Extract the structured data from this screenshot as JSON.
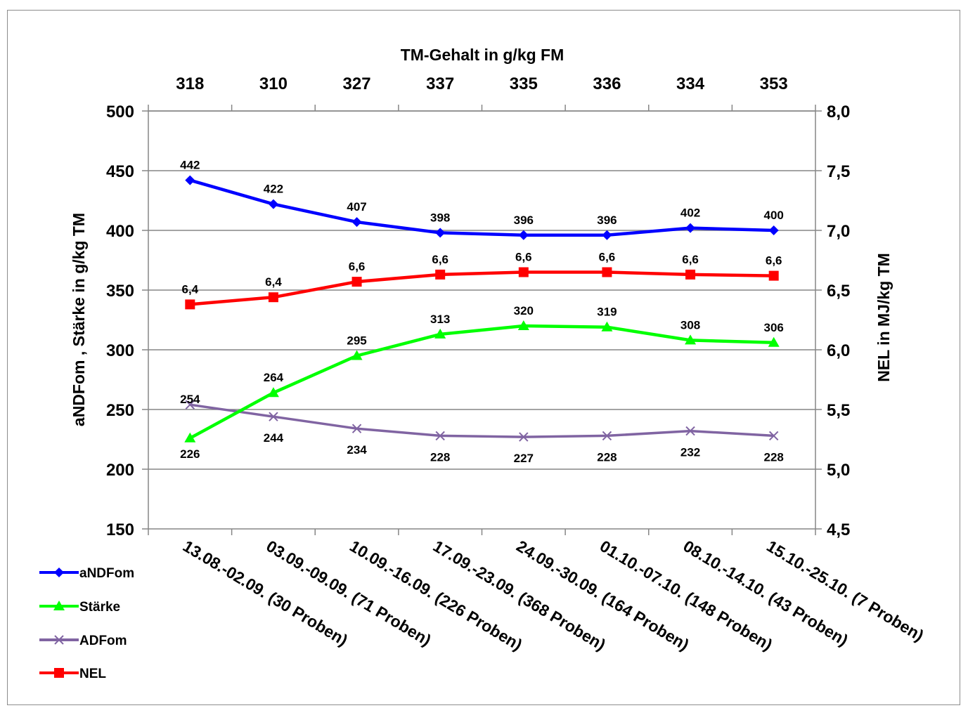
{
  "chart_data": {
    "type": "line",
    "title": "",
    "top_axis_label": "TM-Gehalt in g/kg FM",
    "top_ticks": [
      "318",
      "310",
      "327",
      "337",
      "335",
      "336",
      "334",
      "353"
    ],
    "ylabel": "aNDFom , Stärke in g/kg TM",
    "ylabel_right": "NEL in MJ/kg TM",
    "ylim": [
      150,
      500
    ],
    "ylim_right": [
      4.5,
      8.0
    ],
    "y_ticks": [
      "150",
      "200",
      "250",
      "300",
      "350",
      "400",
      "450",
      "500"
    ],
    "y_ticks_right": [
      "4,5",
      "5,0",
      "5,5",
      "6,0",
      "6,5",
      "7,0",
      "7,5",
      "8,0"
    ],
    "categories": [
      "13.08.-02.09. (30 Proben)",
      "03.09.-09.09. (71 Proben)",
      "10.09.-16.09. (226 Proben)",
      "17.09.-23.09. (368 Proben)",
      "24.09.-30.09. (164 Proben)",
      "01.10.-07.10. (148 Proben)",
      "08.10.-14.10. (43 Proben)",
      "15.10.-25.10. (7 Proben)"
    ],
    "legend_position": "bottom-left",
    "series": [
      {
        "name": "aNDFom",
        "axis": "left",
        "color": "#0000ff",
        "marker": "diamond",
        "values": [
          442,
          422,
          407,
          398,
          396,
          396,
          402,
          400
        ],
        "labels": [
          "442",
          "422",
          "407",
          "398",
          "396",
          "396",
          "402",
          "400"
        ]
      },
      {
        "name": "Stärke",
        "axis": "left",
        "color": "#00ff00",
        "marker": "triangle",
        "values": [
          226,
          264,
          295,
          313,
          320,
          319,
          308,
          306
        ],
        "labels": [
          "226",
          "264",
          "295",
          "313",
          "320",
          "319",
          "308",
          "306"
        ]
      },
      {
        "name": "ADFom",
        "axis": "left",
        "color": "#8064a2",
        "marker": "x",
        "values": [
          254,
          244,
          234,
          228,
          227,
          228,
          232,
          228
        ],
        "labels": [
          "254",
          "244",
          "234",
          "228",
          "227",
          "228",
          "232",
          "228"
        ]
      },
      {
        "name": "NEL",
        "axis": "right",
        "color": "#ff0000",
        "marker": "square",
        "values": [
          6.38,
          6.44,
          6.57,
          6.63,
          6.65,
          6.65,
          6.63,
          6.62
        ],
        "labels": [
          "6,4",
          "6,4",
          "6,6",
          "6,6",
          "6,6",
          "6,6",
          "6,6",
          "6,6"
        ]
      }
    ]
  }
}
